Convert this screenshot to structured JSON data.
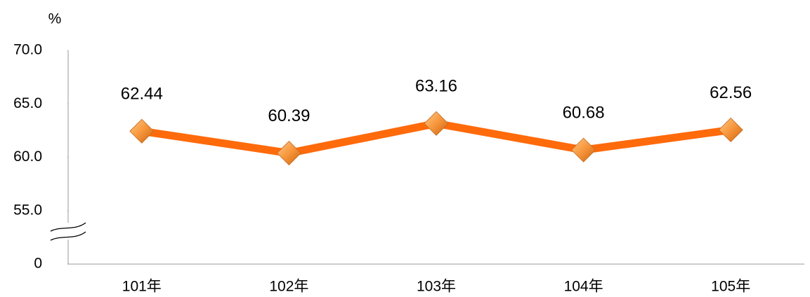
{
  "chart_data": {
    "type": "line",
    "y_label": "%",
    "categories": [
      "101年",
      "102年",
      "103年",
      "104年",
      "105年"
    ],
    "series": [
      {
        "name": null,
        "color": "#ff6a0b",
        "values": [
          62.44,
          60.39,
          63.16,
          60.68,
          62.56
        ]
      }
    ],
    "ylim": [
      0,
      70
    ],
    "yticks": [
      0,
      {
        "value": 55,
        "label": "55.0"
      },
      {
        "value": 60,
        "label": "60.0"
      },
      {
        "value": 65,
        "label": "65.0"
      },
      {
        "value": 70,
        "label": "70.0"
      }
    ],
    "y_break": [
      0,
      55
    ],
    "grid": false
  }
}
